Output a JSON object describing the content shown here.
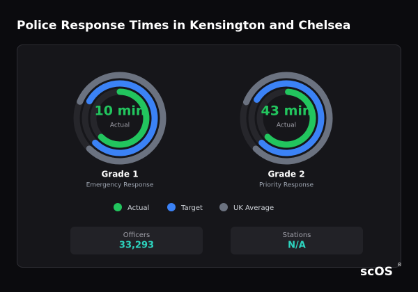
{
  "title": "Police Response Times in Kensington and Chelsea",
  "gauges": [
    {
      "name": "Grade 1",
      "subtitle": "Emergency Response",
      "value_label": "10 min",
      "center_label": "Actual",
      "lim": [
        0,
        16
      ],
      "actual": 10,
      "target": 12.7,
      "uk_average": 13
    },
    {
      "name": "Grade 2",
      "subtitle": "Priority Response",
      "value_label": "43 min",
      "center_label": "Actual",
      "lim": [
        0,
        70
      ],
      "actual": 43,
      "target": 55,
      "uk_average": 57
    }
  ],
  "legend": [
    {
      "key": "actual",
      "name": "Actual",
      "color": "#22c55e"
    },
    {
      "key": "target",
      "name": "Target",
      "color": "#3b82f6"
    },
    {
      "key": "uk_average",
      "name": "UK Average",
      "color": "#6b7280"
    }
  ],
  "stats": [
    {
      "label": "Officers",
      "value": "33,293"
    },
    {
      "label": "Stations",
      "value": "N/A"
    }
  ],
  "logo": "scOS",
  "logo_mark": "®"
}
